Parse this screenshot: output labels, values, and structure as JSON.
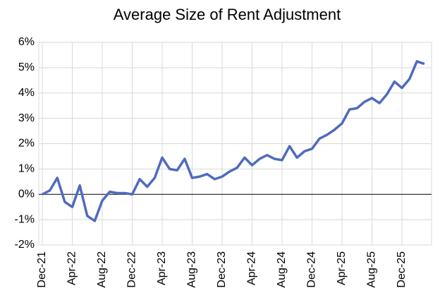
{
  "chart_data": {
    "type": "line",
    "title": "Average Size of Rent Adjustment",
    "categories": [
      "Dec-21",
      null,
      null,
      null,
      "Apr-22",
      null,
      null,
      null,
      "Aug-22",
      null,
      null,
      null,
      "Dec-22",
      null,
      null,
      null,
      "Apr-23",
      null,
      null,
      null,
      "Aug-23",
      null,
      null,
      null,
      "Dec-23",
      null,
      null,
      null,
      "Apr-24",
      null,
      null,
      null,
      "Aug-24",
      null,
      null,
      null,
      "Dec-24",
      null,
      null,
      null,
      "Apr-25",
      null,
      null,
      null,
      "Aug-25",
      null,
      null,
      null,
      "Dec-25",
      null,
      null,
      null
    ],
    "series": [
      {
        "color": "#4f6bbf",
        "values": [
          0,
          0.15,
          0.65,
          -0.3,
          -0.5,
          0.35,
          -0.85,
          -1.05,
          -0.25,
          0.1,
          0.05,
          0.05,
          0,
          0.6,
          0.3,
          0.65,
          1.45,
          1.0,
          0.95,
          1.4,
          0.65,
          0.7,
          0.8,
          0.6,
          0.7,
          0.9,
          1.05,
          1.45,
          1.15,
          1.4,
          1.55,
          1.4,
          1.35,
          1.9,
          1.45,
          1.7,
          1.8,
          2.2,
          2.35,
          2.55,
          2.8,
          3.35,
          3.4,
          3.65,
          3.8,
          3.6,
          3.95,
          4.45,
          4.2,
          4.55,
          5.25,
          5.15
        ]
      }
    ],
    "ylim": [
      -2,
      6
    ],
    "yticks": [
      {
        "value": -2,
        "label": "-2%"
      },
      {
        "value": -1,
        "label": "-1%"
      },
      {
        "value": 0,
        "label": "0%"
      },
      {
        "value": 1,
        "label": "1%"
      },
      {
        "value": 2,
        "label": "2%"
      },
      {
        "value": 3,
        "label": "3%"
      },
      {
        "value": 4,
        "label": "4%"
      },
      {
        "value": 5,
        "label": "5%"
      },
      {
        "value": 6,
        "label": "6%"
      }
    ],
    "grid": true
  }
}
